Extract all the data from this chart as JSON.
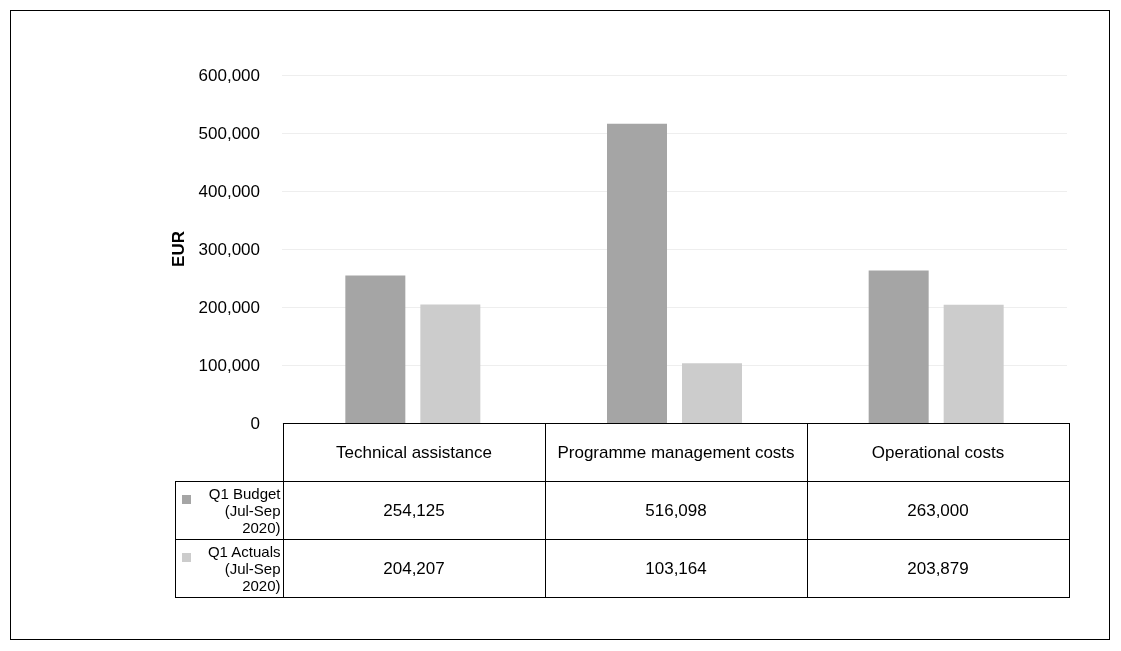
{
  "chart_data": {
    "type": "bar",
    "ylabel": "EUR",
    "categories": [
      "Technical assistance",
      "Programme management costs",
      "Operational costs"
    ],
    "series": [
      {
        "name": "Q1 Budget (Jul-Sep 2020)",
        "color": "#a5a5a5",
        "values": [
          254125,
          516098,
          263000
        ],
        "value_labels": [
          "254,125",
          "516,098",
          "263,000"
        ]
      },
      {
        "name": "Q1 Actuals (Jul-Sep 2020)",
        "color": "#cccccc",
        "values": [
          204207,
          103164,
          203879
        ],
        "value_labels": [
          "204,207",
          "103,164",
          "203,879"
        ]
      }
    ],
    "ylim": [
      0,
      600000
    ],
    "yticks": [
      {
        "value": 0,
        "label": "0"
      },
      {
        "value": 100000,
        "label": "100,000"
      },
      {
        "value": 200000,
        "label": "200,000"
      },
      {
        "value": 300000,
        "label": "300,000"
      },
      {
        "value": 400000,
        "label": "400,000"
      },
      {
        "value": 500000,
        "label": "500,000"
      },
      {
        "value": 600000,
        "label": "600,000"
      }
    ],
    "grid": "y",
    "legend": "bottom left"
  }
}
